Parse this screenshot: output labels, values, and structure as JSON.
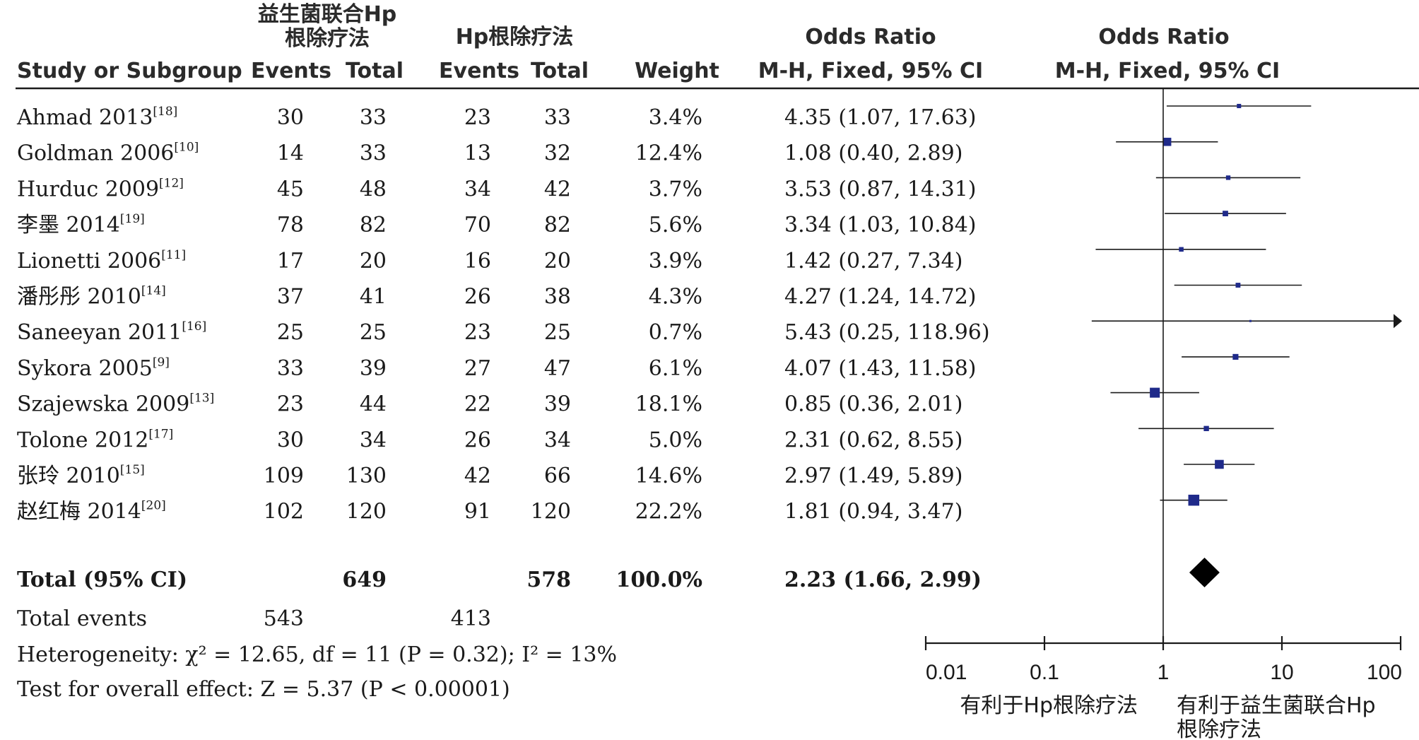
{
  "chart_data": {
    "type": "forest",
    "header": {
      "group1_line1": "益生菌联合Hp",
      "group1_line2": "根除疗法",
      "group2": "Hp根除疗法",
      "study_col": "Study or Subgroup",
      "events": "Events",
      "total": "Total",
      "weight": "Weight",
      "or_title": "Odds Ratio",
      "or_method": "M-H, Fixed, 95% CI"
    },
    "studies": [
      {
        "name": "Ahmad 2013",
        "ref": "[18]",
        "e1": "30",
        "n1": "33",
        "e2": "23",
        "n2": "33",
        "weight": "3.4%",
        "ci_text": "4.35 (1.07, 17.63)",
        "or": 4.35,
        "lo": 1.07,
        "hi": 17.63
      },
      {
        "name": "Goldman 2006",
        "ref": "[10]",
        "e1": "14",
        "n1": "33",
        "e2": "13",
        "n2": "32",
        "weight": "12.4%",
        "ci_text": "1.08 (0.40, 2.89)",
        "or": 1.08,
        "lo": 0.4,
        "hi": 2.89
      },
      {
        "name": "Hurduc 2009",
        "ref": "[12]",
        "e1": "45",
        "n1": "48",
        "e2": "34",
        "n2": "42",
        "weight": "3.7%",
        "ci_text": "3.53 (0.87, 14.31)",
        "or": 3.53,
        "lo": 0.87,
        "hi": 14.31
      },
      {
        "name": "李墨 2014",
        "ref": "[19]",
        "e1": "78",
        "n1": "82",
        "e2": "70",
        "n2": "82",
        "weight": "5.6%",
        "ci_text": "3.34 (1.03, 10.84)",
        "or": 3.34,
        "lo": 1.03,
        "hi": 10.84
      },
      {
        "name": "Lionetti 2006",
        "ref": "[11]",
        "e1": "17",
        "n1": "20",
        "e2": "16",
        "n2": "20",
        "weight": "3.9%",
        "ci_text": "1.42 (0.27, 7.34)",
        "or": 1.42,
        "lo": 0.27,
        "hi": 7.34
      },
      {
        "name": "潘彤彤 2010",
        "ref": "[14]",
        "e1": "37",
        "n1": "41",
        "e2": "26",
        "n2": "38",
        "weight": "4.3%",
        "ci_text": "4.27 (1.24, 14.72)",
        "or": 4.27,
        "lo": 1.24,
        "hi": 14.72
      },
      {
        "name": "Saneeyan 2011",
        "ref": "[16]",
        "e1": "25",
        "n1": "25",
        "e2": "23",
        "n2": "25",
        "weight": "0.7%",
        "ci_text": "5.43 (0.25, 118.96)",
        "or": 5.43,
        "lo": 0.25,
        "hi": 118.96
      },
      {
        "name": "Sykora 2005",
        "ref": "[9]",
        "e1": "33",
        "n1": "39",
        "e2": "27",
        "n2": "47",
        "weight": "6.1%",
        "ci_text": "4.07 (1.43, 11.58)",
        "or": 4.07,
        "lo": 1.43,
        "hi": 11.58
      },
      {
        "name": "Szajewska 2009",
        "ref": "[13]",
        "e1": "23",
        "n1": "44",
        "e2": "22",
        "n2": "39",
        "weight": "18.1%",
        "ci_text": "0.85 (0.36, 2.01)",
        "or": 0.85,
        "lo": 0.36,
        "hi": 2.01
      },
      {
        "name": "Tolone 2012",
        "ref": "[17]",
        "e1": "30",
        "n1": "34",
        "e2": "26",
        "n2": "34",
        "weight": "5.0%",
        "ci_text": "2.31 (0.62, 8.55)",
        "or": 2.31,
        "lo": 0.62,
        "hi": 8.55
      },
      {
        "name": "张玲 2010",
        "ref": "[15]",
        "e1": "109",
        "n1": "130",
        "e2": "42",
        "n2": "66",
        "weight": "14.6%",
        "ci_text": "2.97 (1.49, 5.89)",
        "or": 2.97,
        "lo": 1.49,
        "hi": 5.89
      },
      {
        "name": "赵红梅 2014",
        "ref": "[20]",
        "e1": "102",
        "n1": "120",
        "e2": "91",
        "n2": "120",
        "weight": "22.2%",
        "ci_text": "1.81 (0.94, 3.47)",
        "or": 1.81,
        "lo": 0.94,
        "hi": 3.47
      }
    ],
    "total": {
      "label": "Total (95% CI)",
      "n1": "649",
      "n2": "578",
      "weight": "100.0%",
      "ci_text": "2.23 (1.66, 2.99)",
      "or": 2.23,
      "lo": 1.66,
      "hi": 2.99
    },
    "total_events": {
      "label": "Total events",
      "e1": "543",
      "e2": "413"
    },
    "heterogeneity": "Heterogeneity: χ² = 12.65, df = 11 (P = 0.32); I² = 13%",
    "overall_effect": "Test for overall effect: Z = 5.37 (P < 0.00001)",
    "x_axis": {
      "scale": "log",
      "range": [
        0.01,
        100
      ],
      "ticks": [
        {
          "value": 0.01,
          "label": "0.01"
        },
        {
          "value": 0.1,
          "label": "0.1"
        },
        {
          "value": 1,
          "label": "1"
        },
        {
          "value": 10,
          "label": "10"
        },
        {
          "value": 100,
          "label": "100"
        }
      ]
    },
    "favours_left": "有利于Hp根除疗法",
    "favours_right_line1": "有利于益生菌联合Hp",
    "favours_right_line2": "根除疗法",
    "colors": {
      "marker": "#1f2a8a",
      "diamond": "#000000",
      "line": "#1a1a1a"
    }
  }
}
